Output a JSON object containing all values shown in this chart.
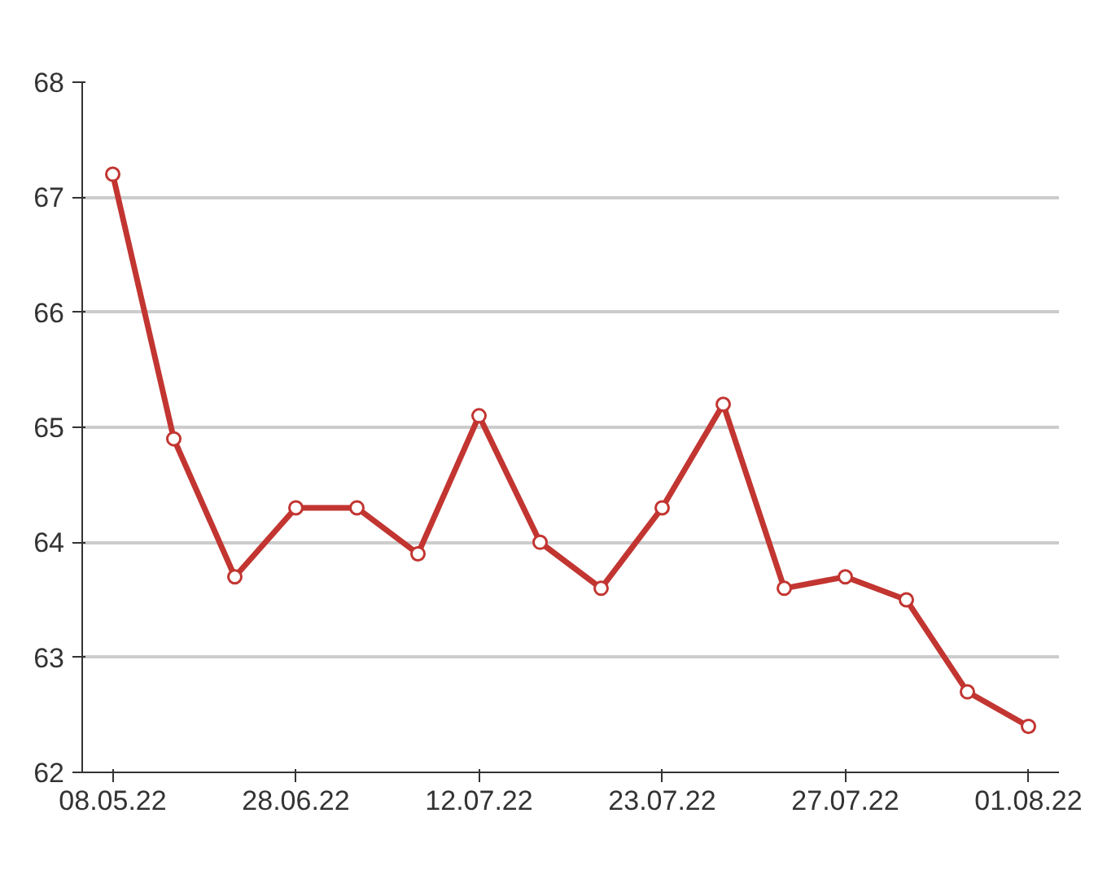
{
  "chart_data": {
    "type": "line",
    "categories": [
      "08.05.22",
      null,
      null,
      "28.06.22",
      null,
      null,
      "12.07.22",
      null,
      null,
      "23.07.22",
      null,
      null,
      "27.07.22",
      null,
      null,
      "01.08.22"
    ],
    "series": [
      {
        "color": "#c23531",
        "values": [
          67.2,
          64.9,
          63.7,
          64.3,
          64.3,
          63.9,
          65.1,
          64.0,
          63.6,
          64.3,
          65.2,
          63.6,
          63.7,
          63.5,
          62.7,
          62.4
        ]
      }
    ],
    "ylim": [
      62,
      68
    ],
    "yticks": [
      62,
      63,
      64,
      65,
      66,
      67,
      68
    ],
    "grid": "y",
    "marker": "circle"
  }
}
